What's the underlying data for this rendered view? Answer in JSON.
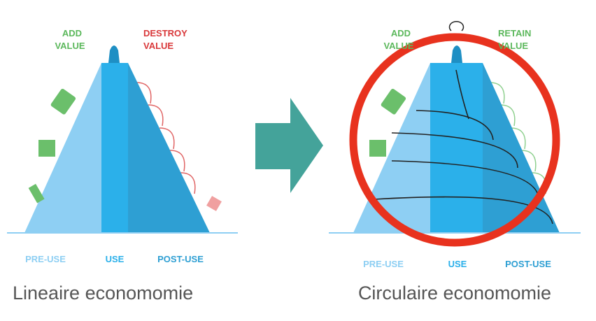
{
  "left": {
    "top_labels": {
      "add": [
        "ADD",
        "VALUE"
      ],
      "destroy": [
        "DESTROY",
        "VALUE"
      ]
    },
    "phases": [
      "PRE-USE",
      "USE",
      "POST-USE"
    ],
    "caption": "Lineaire economomie"
  },
  "right": {
    "top_labels": {
      "add": [
        "ADD",
        "VALUE"
      ],
      "retain": [
        "RETAIN",
        "VALUE"
      ]
    },
    "phases": [
      "PRE-USE",
      "USE",
      "POST-USE"
    ],
    "caption": "Circulaire economomie"
  }
}
